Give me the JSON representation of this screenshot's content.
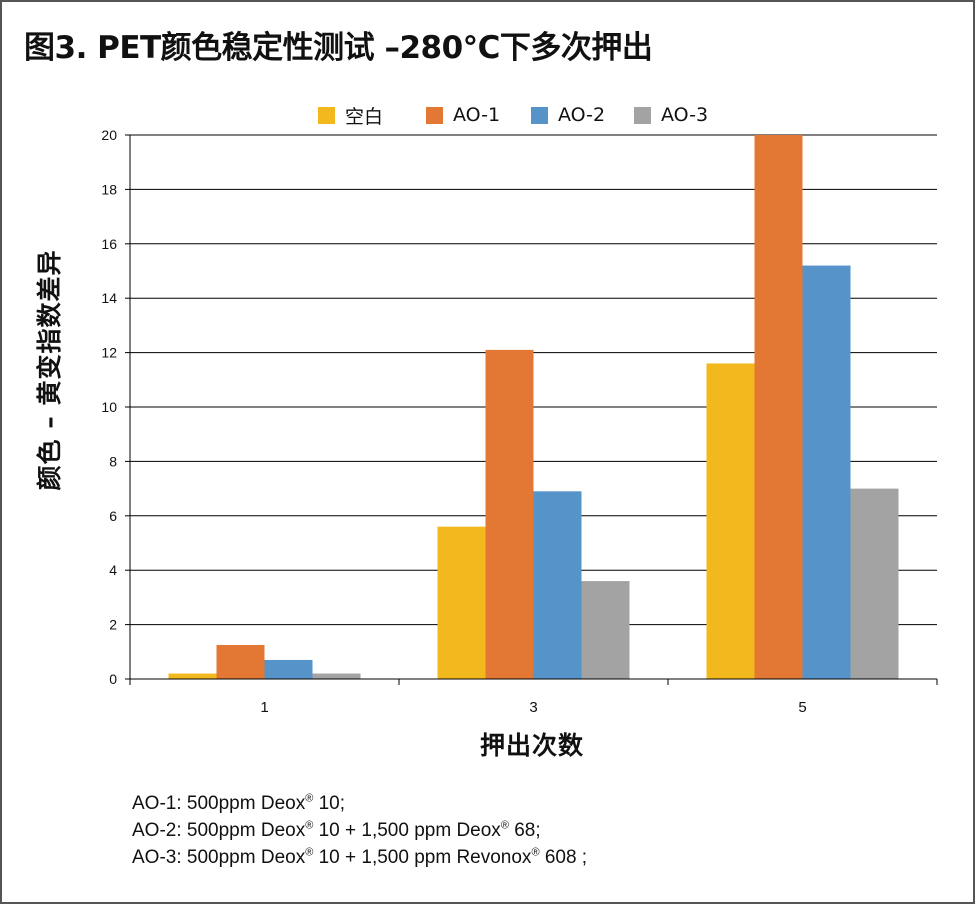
{
  "title": "图3. PET颜色稳定性测试 –280°C下多次押出",
  "chart_data": {
    "type": "bar",
    "title": "图3. PET颜色稳定性测试 –280°C下多次押出",
    "xlabel": "押出次数",
    "ylabel": "颜色 – 黄变指数差异",
    "categories": [
      "1",
      "3",
      "5"
    ],
    "ylim": [
      0,
      20
    ],
    "yticks": [
      "0",
      "2",
      "4",
      "6",
      "8",
      "10",
      "12",
      "14",
      "16",
      "18",
      "20"
    ],
    "grid": true,
    "legend_position": "top",
    "series": [
      {
        "name": "空白",
        "color": "#f2b81e",
        "values": [
          0.2,
          5.6,
          11.6
        ]
      },
      {
        "name": "AO-1",
        "color": "#e37834",
        "values": [
          1.25,
          12.1,
          20
        ]
      },
      {
        "name": "AO-2",
        "color": "#5593c9",
        "values": [
          0.7,
          6.9,
          15.2
        ]
      },
      {
        "name": "AO-3",
        "color": "#a3a3a3",
        "values": [
          0.2,
          3.6,
          7.0
        ]
      }
    ]
  },
  "notes": [
    {
      "prefix": "AO-1: 500ppm Deox",
      "parts": [
        " 10;"
      ]
    },
    {
      "prefix": "AO-2: 500ppm Deox",
      "parts": [
        " 10 + 1,500 ppm Deox",
        " 68;"
      ]
    },
    {
      "prefix": "AO-3: 500ppm Deox",
      "parts": [
        " 10 + 1,500 ppm Revonox",
        " 608 ;"
      ]
    }
  ],
  "registered_mark": "®"
}
